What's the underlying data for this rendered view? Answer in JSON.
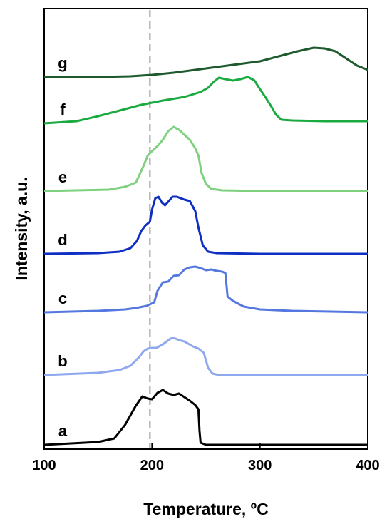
{
  "chart_data": {
    "type": "line",
    "xlabel": "Temperature, ºC",
    "ylabel": "Intensity, a.u.",
    "xlim": [
      100,
      400
    ],
    "xticks": [
      "100",
      "200",
      "300",
      "400"
    ],
    "yticks": false,
    "grid": false,
    "legend": "none",
    "reference_line": {
      "x": 198,
      "style": "dashed",
      "color": "#b8b8b8"
    },
    "series": [
      {
        "name": "a",
        "color": "#000000",
        "baseline": 0,
        "points": [
          [
            100,
            0
          ],
          [
            150,
            4
          ],
          [
            165,
            9
          ],
          [
            175,
            28
          ],
          [
            185,
            55
          ],
          [
            191,
            68
          ],
          [
            196,
            65
          ],
          [
            200,
            64
          ],
          [
            205,
            73
          ],
          [
            210,
            77
          ],
          [
            215,
            72
          ],
          [
            220,
            70
          ],
          [
            225,
            72
          ],
          [
            230,
            67
          ],
          [
            235,
            62
          ],
          [
            240,
            56
          ],
          [
            243,
            50
          ],
          [
            244,
            20
          ],
          [
            245,
            3
          ],
          [
            250,
            0
          ],
          [
            300,
            0
          ],
          [
            400,
            0
          ]
        ]
      },
      {
        "name": "b",
        "color": "#8fa8ee",
        "baseline": 98,
        "points": [
          [
            100,
            0
          ],
          [
            150,
            3
          ],
          [
            170,
            7
          ],
          [
            180,
            13
          ],
          [
            188,
            25
          ],
          [
            192,
            33
          ],
          [
            196,
            37
          ],
          [
            200,
            38
          ],
          [
            204,
            38
          ],
          [
            210,
            43
          ],
          [
            217,
            51
          ],
          [
            220,
            52
          ],
          [
            225,
            49
          ],
          [
            230,
            47
          ],
          [
            238,
            40
          ],
          [
            243,
            37
          ],
          [
            248,
            31
          ],
          [
            252,
            10
          ],
          [
            256,
            2
          ],
          [
            262,
            0
          ],
          [
            400,
            0
          ]
        ]
      },
      {
        "name": "c",
        "color": "#5577e0",
        "baseline": 186,
        "points": [
          [
            100,
            0
          ],
          [
            150,
            2
          ],
          [
            175,
            4
          ],
          [
            185,
            6
          ],
          [
            195,
            9
          ],
          [
            202,
            14
          ],
          [
            205,
            30
          ],
          [
            210,
            42
          ],
          [
            215,
            43
          ],
          [
            220,
            51
          ],
          [
            225,
            52
          ],
          [
            230,
            60
          ],
          [
            235,
            63
          ],
          [
            240,
            64
          ],
          [
            245,
            62
          ],
          [
            250,
            59
          ],
          [
            255,
            60
          ],
          [
            260,
            58
          ],
          [
            265,
            57
          ],
          [
            268,
            55
          ],
          [
            270,
            22
          ],
          [
            275,
            16
          ],
          [
            285,
            8
          ],
          [
            300,
            4
          ],
          [
            330,
            2
          ],
          [
            400,
            0
          ]
        ]
      },
      {
        "name": "d",
        "color": "#0f2fc2",
        "baseline": 268,
        "points": [
          [
            100,
            0
          ],
          [
            150,
            1
          ],
          [
            170,
            3
          ],
          [
            180,
            8
          ],
          [
            186,
            18
          ],
          [
            190,
            32
          ],
          [
            194,
            40
          ],
          [
            198,
            45
          ],
          [
            200,
            62
          ],
          [
            203,
            78
          ],
          [
            206,
            80
          ],
          [
            209,
            72
          ],
          [
            212,
            68
          ],
          [
            215,
            73
          ],
          [
            219,
            80
          ],
          [
            223,
            80
          ],
          [
            230,
            76
          ],
          [
            235,
            74
          ],
          [
            240,
            60
          ],
          [
            243,
            37
          ],
          [
            247,
            12
          ],
          [
            252,
            3
          ],
          [
            260,
            1
          ],
          [
            300,
            0
          ],
          [
            400,
            0
          ]
        ]
      },
      {
        "name": "e",
        "color": "#7fd17f",
        "baseline": 356,
        "points": [
          [
            100,
            0
          ],
          [
            160,
            2
          ],
          [
            175,
            6
          ],
          [
            185,
            12
          ],
          [
            192,
            35
          ],
          [
            196,
            50
          ],
          [
            200,
            56
          ],
          [
            205,
            63
          ],
          [
            210,
            72
          ],
          [
            215,
            84
          ],
          [
            220,
            90
          ],
          [
            225,
            86
          ],
          [
            230,
            79
          ],
          [
            235,
            72
          ],
          [
            240,
            60
          ],
          [
            243,
            50
          ],
          [
            246,
            25
          ],
          [
            250,
            10
          ],
          [
            255,
            3
          ],
          [
            265,
            1
          ],
          [
            300,
            0
          ],
          [
            400,
            0
          ]
        ]
      },
      {
        "name": "f",
        "color": "#1aaa40",
        "baseline": 451,
        "points": [
          [
            100,
            0
          ],
          [
            130,
            3
          ],
          [
            150,
            10
          ],
          [
            170,
            18
          ],
          [
            190,
            26
          ],
          [
            210,
            32
          ],
          [
            230,
            37
          ],
          [
            245,
            44
          ],
          [
            252,
            50
          ],
          [
            257,
            58
          ],
          [
            262,
            64
          ],
          [
            268,
            62
          ],
          [
            275,
            60
          ],
          [
            282,
            62
          ],
          [
            289,
            65
          ],
          [
            295,
            60
          ],
          [
            300,
            48
          ],
          [
            305,
            37
          ],
          [
            310,
            25
          ],
          [
            315,
            12
          ],
          [
            320,
            5
          ],
          [
            330,
            4
          ],
          [
            360,
            3
          ],
          [
            400,
            3
          ]
        ]
      },
      {
        "name": "g",
        "color": "#1e5a2e",
        "baseline": 516,
        "points": [
          [
            100,
            0
          ],
          [
            150,
            0
          ],
          [
            180,
            1
          ],
          [
            200,
            3
          ],
          [
            220,
            6
          ],
          [
            240,
            10
          ],
          [
            260,
            14
          ],
          [
            280,
            18
          ],
          [
            300,
            22
          ],
          [
            320,
            30
          ],
          [
            335,
            36
          ],
          [
            350,
            41
          ],
          [
            360,
            40
          ],
          [
            370,
            36
          ],
          [
            380,
            26
          ],
          [
            390,
            16
          ],
          [
            400,
            10
          ]
        ]
      }
    ]
  }
}
